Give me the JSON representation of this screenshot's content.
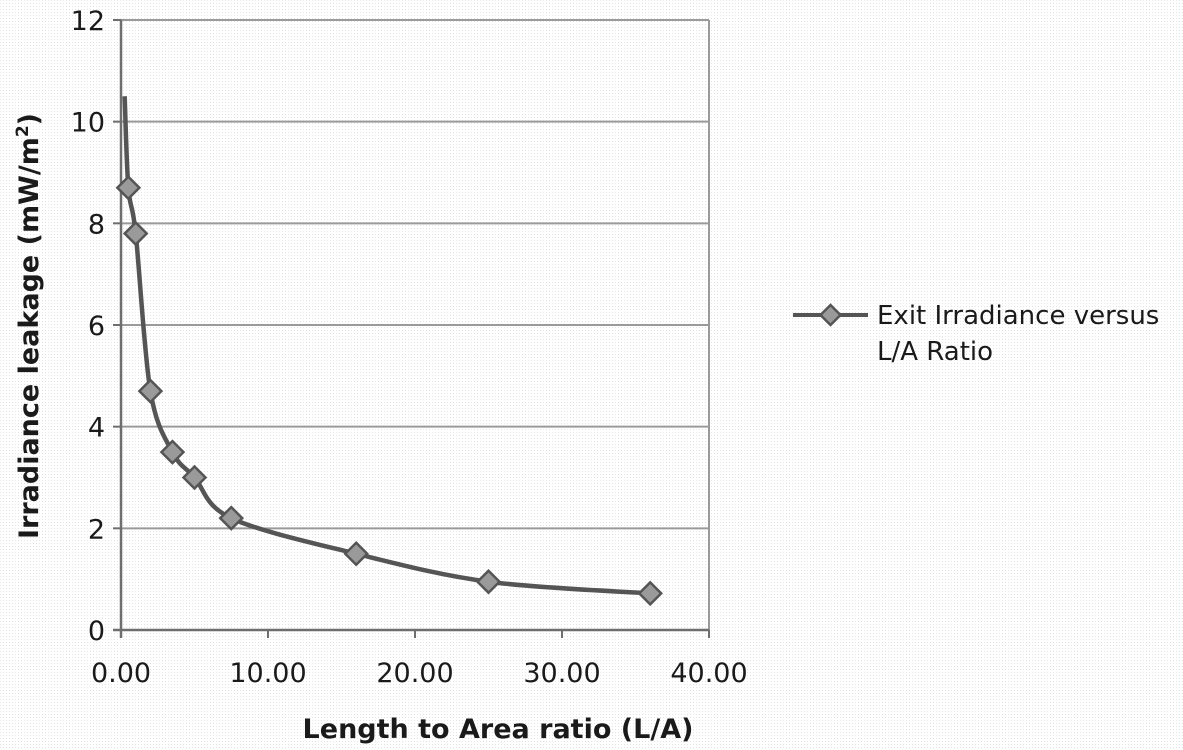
{
  "chart_data": {
    "type": "scatter",
    "xlabel": "Length to Area ratio (L/A)",
    "ylabel_main": "Irradiance leakage (mW/m",
    "ylabel_sup": "2",
    "ylabel_end": ")",
    "xlim": [
      0,
      40
    ],
    "ylim": [
      0,
      12
    ],
    "x_ticks": [
      0,
      10,
      20,
      30,
      40
    ],
    "x_tick_labels": [
      "0.00",
      "10.00",
      "20.00",
      "30.00",
      "40.00"
    ],
    "y_ticks": [
      0,
      2,
      4,
      6,
      8,
      10,
      12
    ],
    "y_tick_labels": [
      "0",
      "2",
      "4",
      "6",
      "8",
      "10",
      "12"
    ],
    "grid": "horizontal",
    "legend_position": "right",
    "series": [
      {
        "name": "Exit Irradiance versus L/A Ratio",
        "marker": "diamond",
        "color": "#555555",
        "smooth": true,
        "x": [
          0.25,
          0.5,
          1.0,
          2.0,
          3.5,
          5.0,
          7.5,
          16.0,
          25.0,
          36.0
        ],
        "y": [
          10.5,
          8.7,
          7.8,
          4.7,
          3.5,
          3.0,
          2.2,
          1.5,
          0.95,
          0.72
        ]
      }
    ]
  }
}
